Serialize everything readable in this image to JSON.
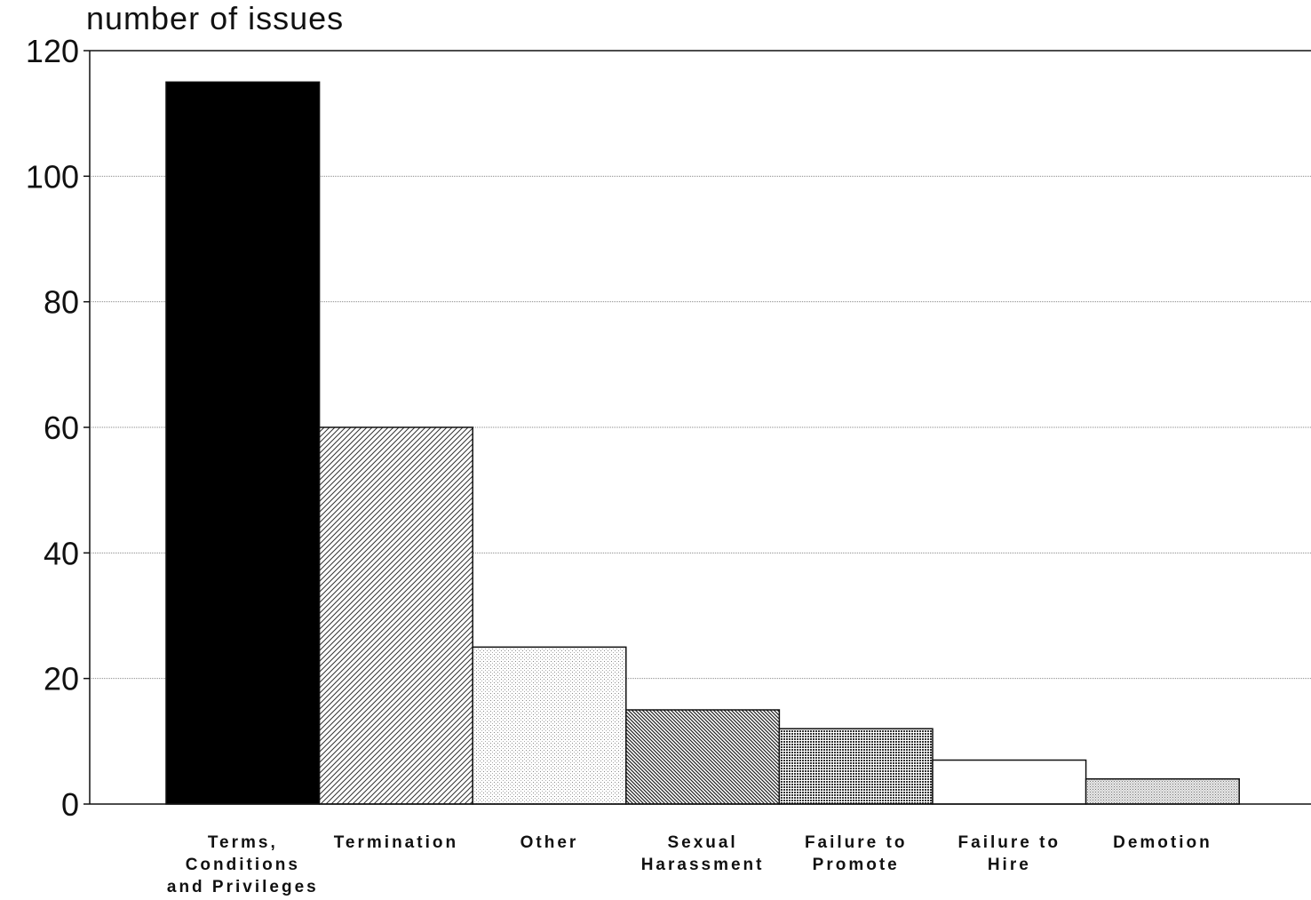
{
  "chart_data": {
    "type": "bar",
    "ylabel": "number of issues",
    "xlabel": "",
    "ylim": [
      0,
      120
    ],
    "yticks": [
      0,
      20,
      40,
      60,
      80,
      100,
      120
    ],
    "grid": true,
    "categories": [
      "Terms, Conditions and Privileges",
      "Termination",
      "Other",
      "Sexual Harassment",
      "Failure to Promote",
      "Failure to Hire",
      "Demotion"
    ],
    "category_label_lines": [
      [
        "Terms,",
        "Conditions",
        "and Privileges"
      ],
      [
        "Termination"
      ],
      [
        "Other"
      ],
      [
        "Sexual",
        "Harassment"
      ],
      [
        "Failure to",
        "Promote"
      ],
      [
        "Failure to",
        "Hire"
      ],
      [
        "Demotion"
      ]
    ],
    "values": [
      115,
      60,
      25,
      15,
      12,
      7,
      4
    ],
    "bar_fills": [
      "solid-black",
      "diagonal-hatch",
      "light-dots",
      "dense-back-hatch",
      "dense-dots",
      "white",
      "fine-grey-dots"
    ]
  }
}
